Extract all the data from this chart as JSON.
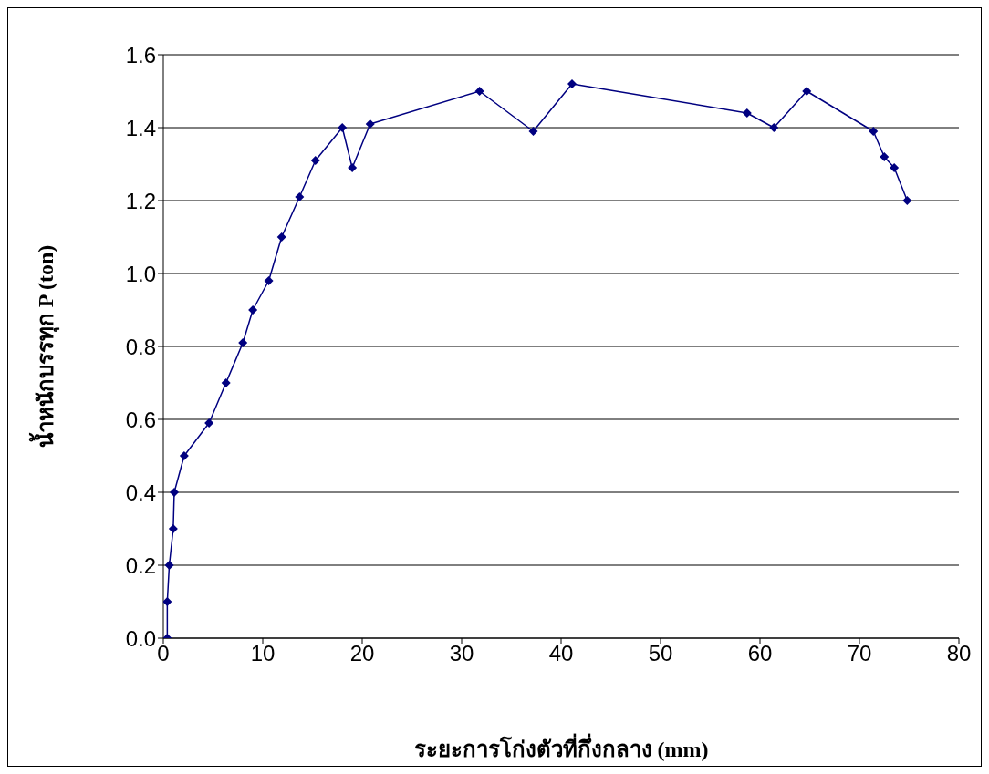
{
  "chart_data": {
    "type": "line",
    "xlabel": "ระยะการโก่งตัวที่กึ่งกลาง (mm)",
    "ylabel": "น้ำหนักบรรทุก P (ton)",
    "x": [
      0.4,
      0.4,
      0.6,
      1.0,
      1.1,
      2.1,
      4.6,
      6.3,
      8.0,
      9.0,
      10.6,
      11.9,
      13.7,
      15.3,
      18.0,
      19.0,
      20.8,
      31.8,
      37.2,
      41.1,
      58.7,
      61.4,
      64.7,
      71.4,
      72.5,
      73.5,
      74.8
    ],
    "series": [
      {
        "color": "#000080",
        "values": [
          0,
          0.1,
          0.2,
          0.3,
          0.4,
          0.5,
          0.59,
          0.7,
          0.81,
          0.9,
          0.98,
          1.1,
          1.21,
          1.31,
          1.4,
          1.29,
          1.41,
          1.5,
          1.39,
          1.52,
          1.44,
          1.4,
          1.5,
          1.39,
          1.32,
          1.29,
          1.2
        ]
      }
    ],
    "xlim": [
      0,
      80
    ],
    "xticks": [
      0,
      10,
      20,
      30,
      40,
      50,
      60,
      70,
      80
    ],
    "ylim": [
      0,
      1.6
    ],
    "yticks": [
      {
        "value": 0,
        "label": "0.0"
      },
      0.2,
      0.4,
      0.6,
      0.8,
      {
        "value": 1,
        "label": "1.0"
      },
      1.2,
      1.4,
      1.6
    ],
    "grid": "y",
    "legend": false,
    "marker": "diamond",
    "line_style": "solid"
  }
}
